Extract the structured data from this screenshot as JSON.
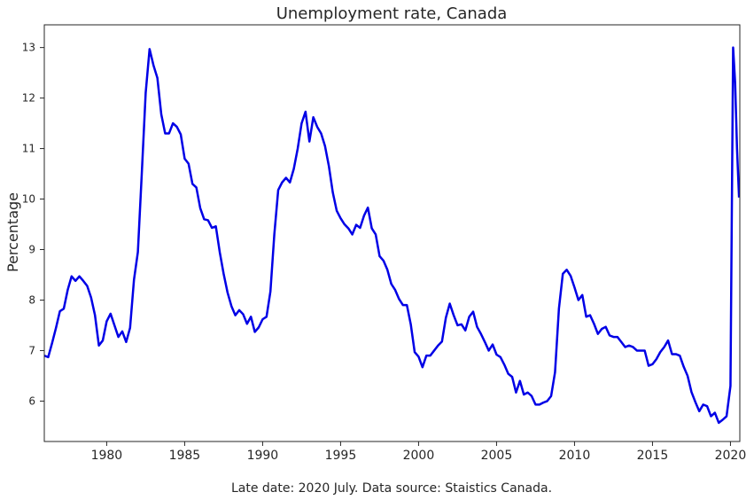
{
  "chart_data": {
    "type": "line",
    "title": "Unemployment rate, Canada",
    "xlabel": "",
    "ylabel": "Percentage",
    "caption": "Late date: 2020 July. Data source: Staistics Canada.",
    "xlim": [
      1976.0,
      2020.6
    ],
    "ylim": [
      5.2,
      13.45
    ],
    "x_ticks": [
      1980,
      1985,
      1990,
      1995,
      2000,
      2005,
      2010,
      2015,
      2020
    ],
    "y_ticks": [
      6,
      7,
      8,
      9,
      10,
      11,
      12,
      13
    ],
    "grid": false,
    "legend": "none",
    "line_color": "#0000e6",
    "series": [
      {
        "x": [
          1976.0,
          1976.25,
          1976.5,
          1976.75,
          1977.0,
          1977.25,
          1977.5,
          1977.75,
          1978.0,
          1978.25,
          1978.5,
          1978.75,
          1979.0,
          1979.25,
          1979.5,
          1979.75,
          1980.0,
          1980.25,
          1980.5,
          1980.75,
          1981.0,
          1981.25,
          1981.5,
          1981.75,
          1982.0,
          1982.25,
          1982.5,
          1982.75,
          1983.0,
          1983.25,
          1983.5,
          1983.75,
          1984.0,
          1984.25,
          1984.5,
          1984.75,
          1985.0,
          1985.25,
          1985.5,
          1985.75,
          1986.0,
          1986.25,
          1986.5,
          1986.75,
          1987.0,
          1987.25,
          1987.5,
          1987.75,
          1988.0,
          1988.25,
          1988.5,
          1988.75,
          1989.0,
          1989.25,
          1989.5,
          1989.75,
          1990.0,
          1990.25,
          1990.5,
          1990.75,
          1991.0,
          1991.25,
          1991.5,
          1991.75,
          1992.0,
          1992.25,
          1992.5,
          1992.75,
          1993.0,
          1993.25,
          1993.5,
          1993.75,
          1994.0,
          1994.25,
          1994.5,
          1994.75,
          1995.0,
          1995.25,
          1995.5,
          1995.75,
          1996.0,
          1996.25,
          1996.5,
          1996.75,
          1997.0,
          1997.25,
          1997.5,
          1997.75,
          1998.0,
          1998.25,
          1998.5,
          1998.75,
          1999.0,
          1999.25,
          1999.5,
          1999.75,
          2000.0,
          2000.25,
          2000.5,
          2000.75,
          2001.0,
          2001.25,
          2001.5,
          2001.75,
          2002.0,
          2002.25,
          2002.5,
          2002.75,
          2003.0,
          2003.25,
          2003.5,
          2003.75,
          2004.0,
          2004.25,
          2004.5,
          2004.75,
          2005.0,
          2005.25,
          2005.5,
          2005.75,
          2006.0,
          2006.25,
          2006.5,
          2006.75,
          2007.0,
          2007.25,
          2007.5,
          2007.75,
          2008.0,
          2008.25,
          2008.5,
          2008.75,
          2009.0,
          2009.25,
          2009.5,
          2009.75,
          2010.0,
          2010.25,
          2010.5,
          2010.75,
          2011.0,
          2011.25,
          2011.5,
          2011.75,
          2012.0,
          2012.25,
          2012.5,
          2012.75,
          2013.0,
          2013.25,
          2013.5,
          2013.75,
          2014.0,
          2014.25,
          2014.5,
          2014.75,
          2015.0,
          2015.25,
          2015.5,
          2015.75,
          2016.0,
          2016.25,
          2016.5,
          2016.75,
          2017.0,
          2017.25,
          2017.5,
          2017.75,
          2018.0,
          2018.25,
          2018.5,
          2018.75,
          2019.0,
          2019.25,
          2019.5,
          2019.75,
          2020.0,
          2020.17,
          2020.3,
          2020.42,
          2020.55
        ],
        "values": [
          6.9,
          6.87,
          7.15,
          7.45,
          7.78,
          7.83,
          8.2,
          8.47,
          8.38,
          8.47,
          8.38,
          8.28,
          8.05,
          7.7,
          7.1,
          7.2,
          7.58,
          7.73,
          7.5,
          7.27,
          7.38,
          7.17,
          7.45,
          8.4,
          8.95,
          10.5,
          12.1,
          12.97,
          12.65,
          12.4,
          11.68,
          11.3,
          11.3,
          11.5,
          11.43,
          11.28,
          10.8,
          10.7,
          10.3,
          10.23,
          9.82,
          9.6,
          9.58,
          9.43,
          9.46,
          8.95,
          8.52,
          8.15,
          7.88,
          7.7,
          7.8,
          7.72,
          7.53,
          7.67,
          7.37,
          7.46,
          7.62,
          7.67,
          8.17,
          9.3,
          10.18,
          10.33,
          10.42,
          10.33,
          10.6,
          11.0,
          11.5,
          11.73,
          11.14,
          11.62,
          11.43,
          11.3,
          11.05,
          10.65,
          10.13,
          9.77,
          9.62,
          9.5,
          9.42,
          9.3,
          9.49,
          9.43,
          9.67,
          9.83,
          9.42,
          9.3,
          8.87,
          8.78,
          8.6,
          8.32,
          8.2,
          8.02,
          7.9,
          7.9,
          7.52,
          6.97,
          6.88,
          6.67,
          6.9,
          6.9,
          7.0,
          7.1,
          7.18,
          7.65,
          7.93,
          7.7,
          7.5,
          7.52,
          7.4,
          7.67,
          7.77,
          7.47,
          7.33,
          7.17,
          7.0,
          7.12,
          6.92,
          6.87,
          6.72,
          6.54,
          6.48,
          6.17,
          6.4,
          6.13,
          6.17,
          6.1,
          5.93,
          5.93,
          5.97,
          6.0,
          6.1,
          6.57,
          7.83,
          8.52,
          8.6,
          8.48,
          8.25,
          8.0,
          8.1,
          7.67,
          7.7,
          7.53,
          7.33,
          7.43,
          7.47,
          7.3,
          7.27,
          7.27,
          7.17,
          7.07,
          7.1,
          7.07,
          7.0,
          7.0,
          7.0,
          6.7,
          6.73,
          6.83,
          6.97,
          7.07,
          7.2,
          6.93,
          6.93,
          6.9,
          6.68,
          6.5,
          6.18,
          5.98,
          5.8,
          5.93,
          5.9,
          5.7,
          5.77,
          5.57,
          5.63,
          5.7,
          6.3,
          13.0,
          12.3,
          11.0,
          10.03
        ]
      }
    ]
  }
}
